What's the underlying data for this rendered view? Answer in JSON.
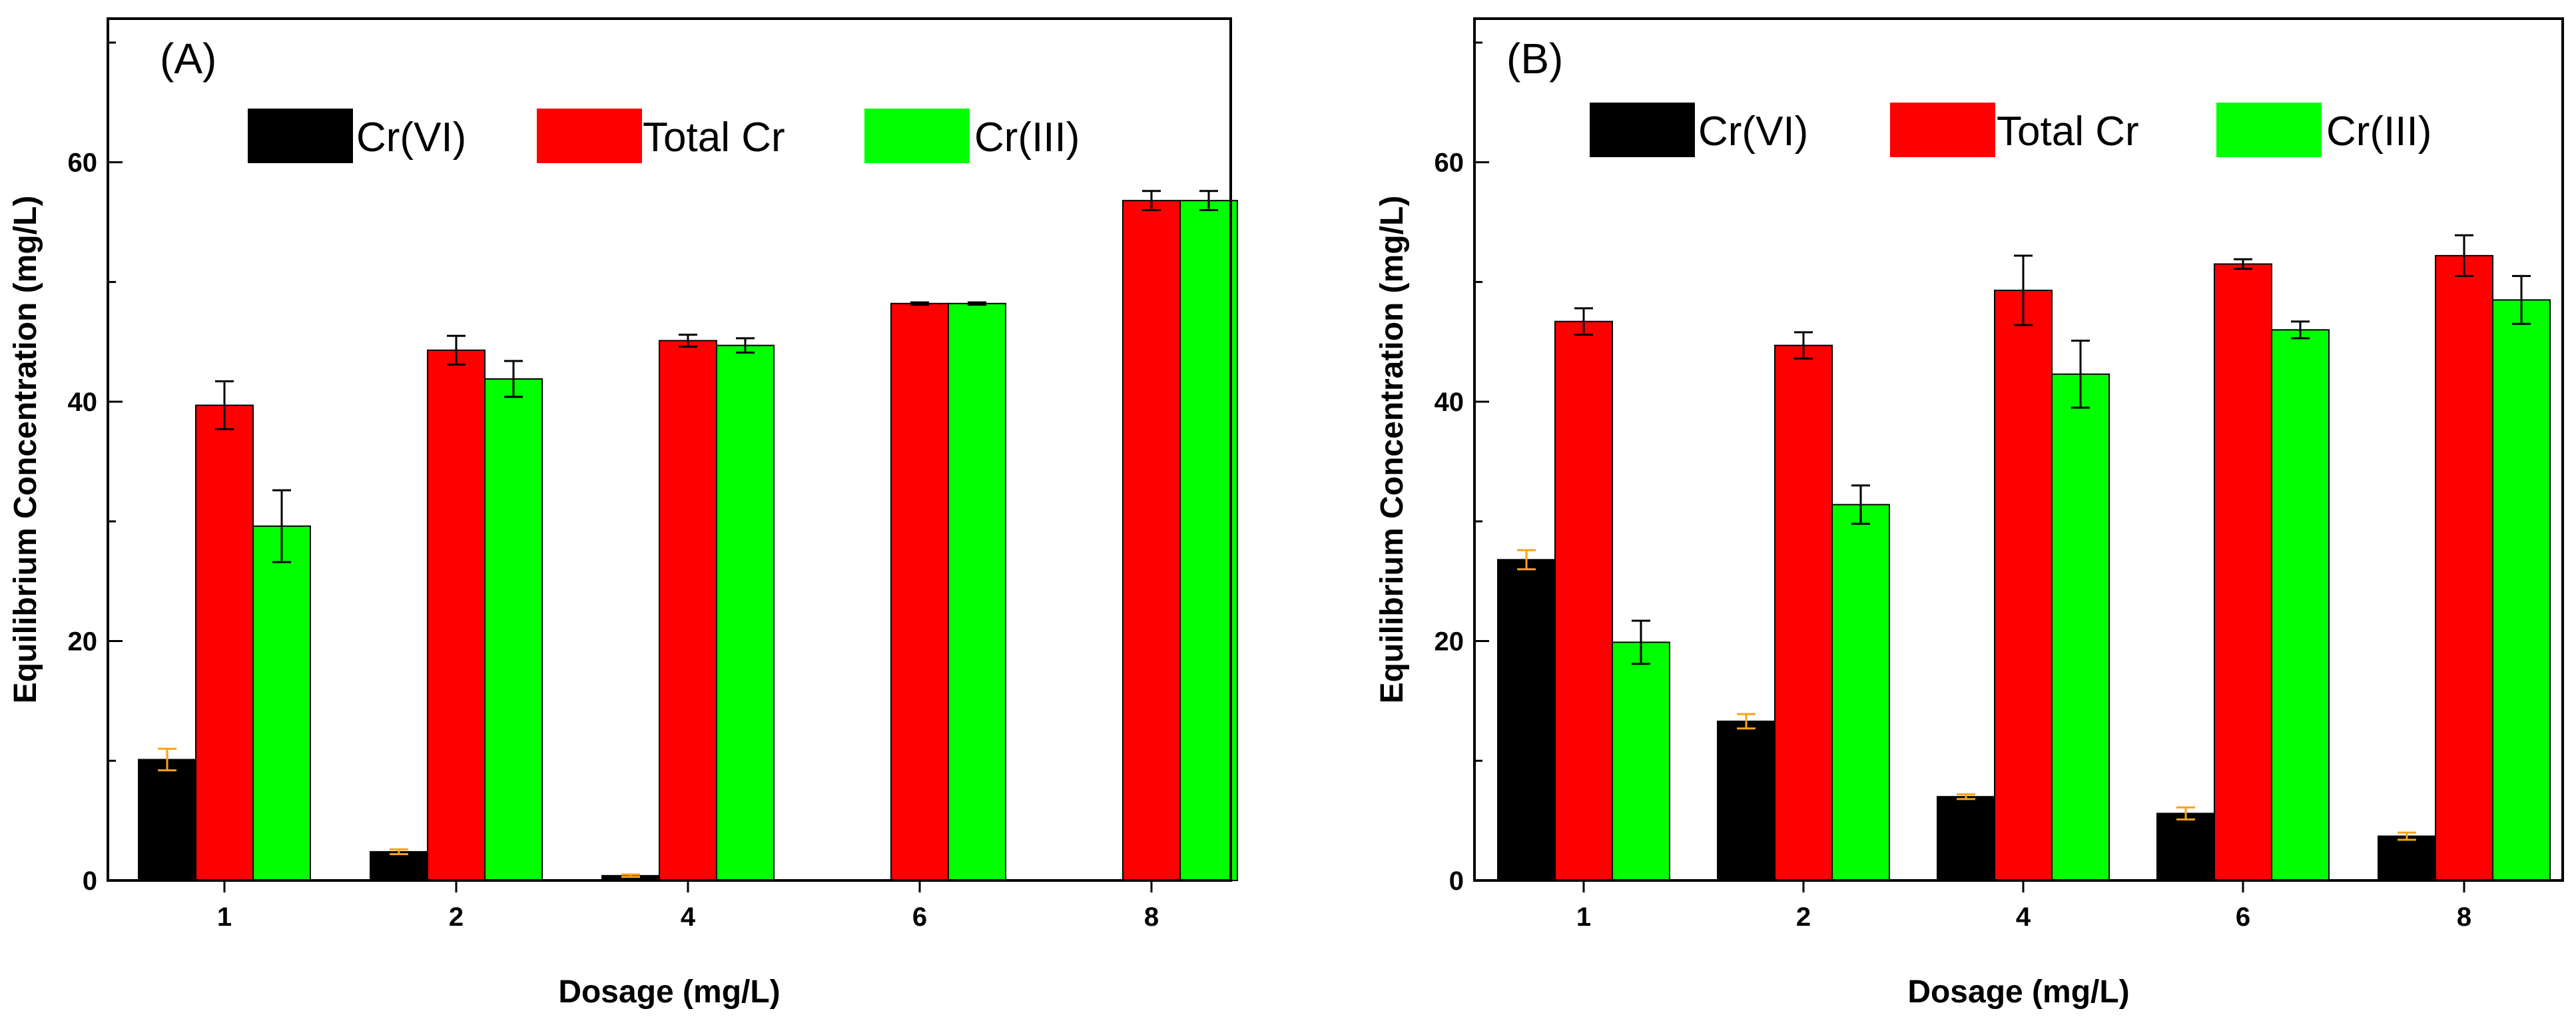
{
  "chart_data": [
    {
      "type": "bar",
      "panel_label": "(A)",
      "xlabel": "Dosage (mg/L)",
      "ylabel": "Equilibrium Concentration (mg/L)",
      "categories": [
        "1",
        "2",
        "4",
        "6",
        "8"
      ],
      "ylim": [
        0,
        72
      ],
      "yticks": [
        "0",
        "20",
        "40",
        "60"
      ],
      "legend_position": "top",
      "series": [
        {
          "name": "Cr(VI)",
          "color": "#000000",
          "values": [
            10.1,
            2.4,
            0.4,
            0,
            0
          ],
          "errors": [
            0.9,
            0.2,
            0.1,
            0,
            0
          ],
          "error_color": "#f7a21b"
        },
        {
          "name": "Total Cr",
          "color": "#ff0000",
          "values": [
            39.7,
            44.3,
            45.1,
            48.2,
            56.8
          ],
          "errors": [
            2.0,
            1.2,
            0.5,
            0.1,
            0.8
          ],
          "error_color": "#000000"
        },
        {
          "name": "Cr(III)",
          "color": "#00ff00",
          "values": [
            29.6,
            41.9,
            44.7,
            48.2,
            56.8
          ],
          "errors": [
            3.0,
            1.5,
            0.6,
            0.1,
            0.8
          ],
          "error_color": "#000000"
        }
      ]
    },
    {
      "type": "bar",
      "panel_label": "(B)",
      "xlabel": "Dosage (mg/L)",
      "ylabel": "Equilibrium Concentration (mg/L)",
      "categories": [
        "1",
        "2",
        "4",
        "6",
        "8"
      ],
      "ylim": [
        0,
        72
      ],
      "yticks": [
        "0",
        "20",
        "40",
        "60"
      ],
      "legend_position": "top",
      "series": [
        {
          "name": "Cr(VI)",
          "color": "#000000",
          "values": [
            26.8,
            13.3,
            7.0,
            5.6,
            3.7
          ],
          "errors": [
            0.8,
            0.6,
            0.2,
            0.5,
            0.3
          ],
          "error_color": "#f7a21b"
        },
        {
          "name": "Total Cr",
          "color": "#ff0000",
          "values": [
            46.7,
            44.7,
            49.3,
            51.5,
            52.2
          ],
          "errors": [
            1.1,
            1.1,
            2.9,
            0.4,
            1.7
          ],
          "error_color": "#000000"
        },
        {
          "name": "Cr(III)",
          "color": "#00ff00",
          "values": [
            19.9,
            31.4,
            42.3,
            46.0,
            48.5
          ],
          "errors": [
            1.8,
            1.6,
            2.8,
            0.7,
            2.0
          ],
          "error_color": "#000000"
        }
      ]
    }
  ]
}
